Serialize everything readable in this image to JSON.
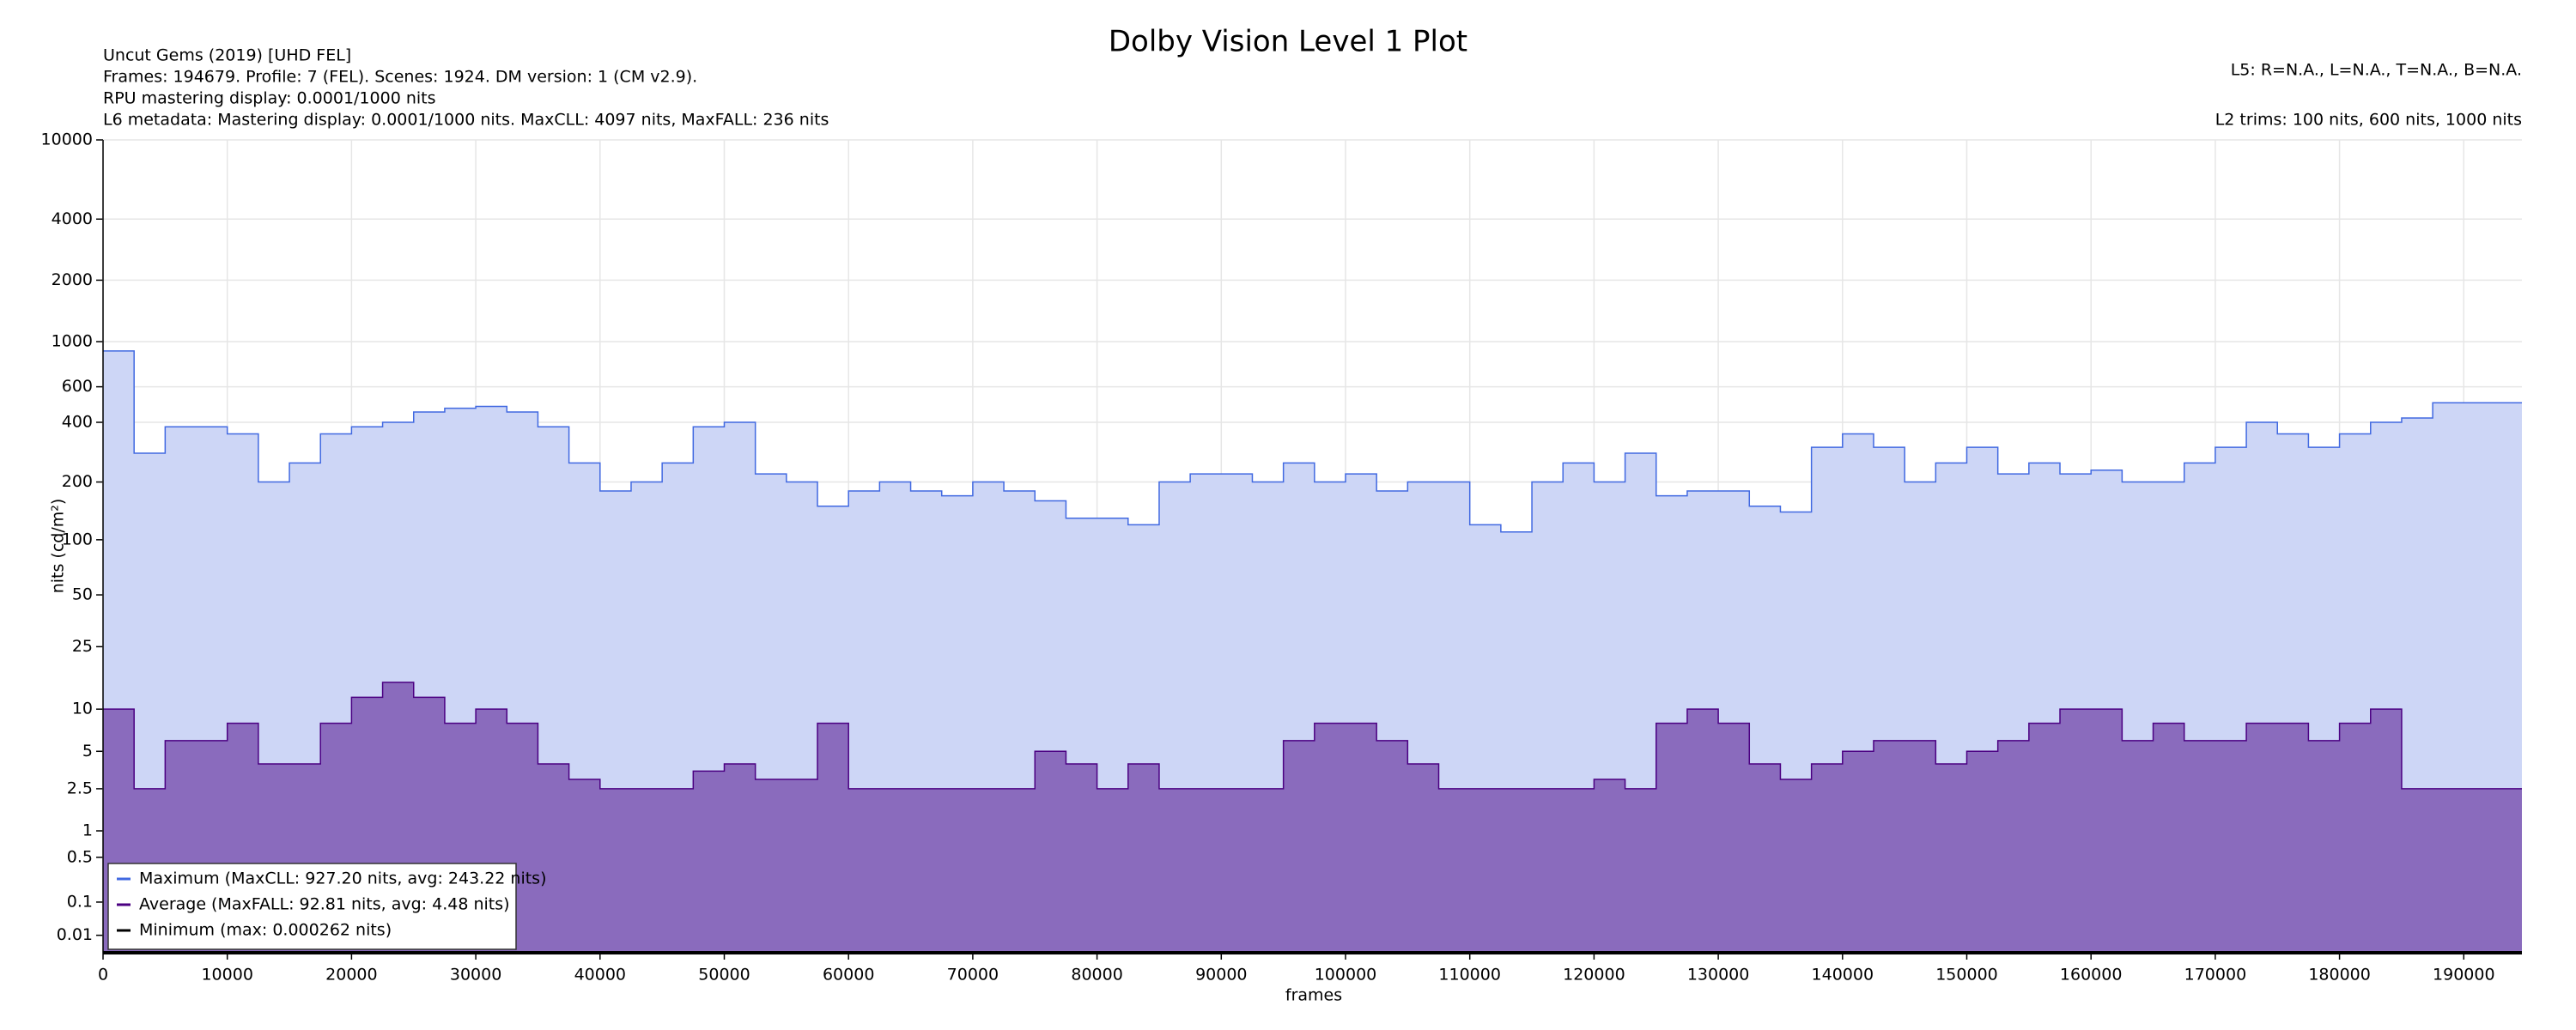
{
  "chart_data": {
    "type": "step",
    "title": "Dolby Vision Level 1 Plot",
    "info_left": [
      "Uncut Gems (2019) [UHD FEL]",
      "Frames: 194679. Profile: 7 (FEL). Scenes: 1924. DM version: 1 (CM v2.9).",
      "RPU mastering display: 0.0001/1000 nits",
      "L6 metadata: Mastering display: 0.0001/1000 nits. MaxCLL: 4097 nits, MaxFALL: 236 nits"
    ],
    "info_right": [
      "L5: R=N.A., L=N.A., T=N.A., B=N.A.",
      "L2 trims: 100 nits, 600 nits, 1000 nits"
    ],
    "xlabel": "frames",
    "ylabel": "nits (cd/m²)",
    "yscale": "pq",
    "grid": true,
    "legend": "lower left",
    "xlim": [
      0,
      194679
    ],
    "ylim": [
      0,
      10000
    ],
    "xticks": [
      0,
      10000,
      20000,
      30000,
      40000,
      50000,
      60000,
      70000,
      80000,
      90000,
      100000,
      110000,
      120000,
      130000,
      140000,
      150000,
      160000,
      170000,
      180000,
      190000
    ],
    "yticks": [
      0.01,
      0.1,
      0.5,
      1,
      2.5,
      5,
      10,
      25,
      50,
      100,
      200,
      400,
      600,
      1000,
      2000,
      4000,
      10000
    ],
    "x": [
      0,
      2500,
      5000,
      7500,
      10000,
      12500,
      15000,
      17500,
      20000,
      22500,
      25000,
      27500,
      30000,
      32500,
      35000,
      37500,
      40000,
      42500,
      45000,
      47500,
      50000,
      52500,
      55000,
      57500,
      60000,
      62500,
      65000,
      67500,
      70000,
      72500,
      75000,
      77500,
      80000,
      82500,
      85000,
      87500,
      90000,
      92500,
      95000,
      97500,
      100000,
      102500,
      105000,
      107500,
      110000,
      112500,
      115000,
      117500,
      120000,
      122500,
      125000,
      127500,
      130000,
      132500,
      135000,
      137500,
      140000,
      142500,
      145000,
      147500,
      150000,
      152500,
      155000,
      157500,
      160000,
      162500,
      165000,
      167500,
      170000,
      172500,
      175000,
      177500,
      180000,
      182500,
      185000,
      187500,
      190000,
      192500,
      194679
    ],
    "series": [
      {
        "name": "Maximum (MaxCLL: 927.20 nits, avg: 243.22 nits)",
        "color": "#4169e1",
        "fill": "#cdd6f6",
        "values": [
          900,
          280,
          380,
          380,
          350,
          200,
          250,
          350,
          380,
          400,
          450,
          470,
          480,
          450,
          380,
          250,
          180,
          200,
          250,
          380,
          400,
          220,
          200,
          150,
          180,
          200,
          180,
          170,
          200,
          180,
          160,
          130,
          130,
          120,
          200,
          220,
          220,
          200,
          250,
          200,
          220,
          180,
          200,
          200,
          120,
          110,
          200,
          250,
          200,
          280,
          170,
          180,
          180,
          150,
          140,
          300,
          350,
          300,
          200,
          250,
          300,
          220,
          250,
          220,
          230,
          200,
          200,
          250,
          300,
          400,
          350,
          300,
          350,
          400,
          420,
          500,
          500,
          500,
          500
        ]
      },
      {
        "name": "Average (MaxFALL: 92.81 nits, avg: 4.48 nits)",
        "color": "#4b0082",
        "fill": "#8a6bbd",
        "values": [
          10,
          2.5,
          6,
          6,
          8,
          4,
          4,
          8,
          12,
          15,
          12,
          8,
          10,
          8,
          4,
          3,
          2.5,
          2.5,
          2.5,
          3.5,
          4,
          3,
          3,
          8,
          2.5,
          2.5,
          2.5,
          2.5,
          2.5,
          2.5,
          5,
          4,
          2.5,
          4,
          2.5,
          2.5,
          2.5,
          2.5,
          6,
          8,
          8,
          6,
          4,
          2.5,
          2.5,
          2.5,
          2.5,
          2.5,
          3,
          2.5,
          8,
          10,
          8,
          4,
          3,
          4,
          5,
          6,
          6,
          4,
          5,
          6,
          8,
          10,
          10,
          6,
          8,
          6,
          6,
          8,
          8,
          6,
          8,
          10,
          2.5,
          2.5,
          2.5,
          2.5,
          2.5
        ]
      },
      {
        "name": "Minimum (max: 0.000262 nits)",
        "color": "#000000",
        "fill": "none",
        "values": [
          0,
          0,
          0,
          0,
          0,
          0,
          0,
          0,
          0,
          0,
          0,
          0,
          0,
          0,
          0,
          0,
          0,
          0,
          0,
          0,
          0,
          0,
          0,
          0,
          0,
          0,
          0,
          0,
          0,
          0,
          0,
          0,
          0,
          0,
          0,
          0,
          0,
          0,
          0,
          0,
          0,
          0,
          0,
          0,
          0,
          0,
          0,
          0,
          0,
          0,
          0,
          0,
          0,
          0,
          0,
          0,
          0,
          0,
          0,
          0,
          0,
          0,
          0,
          0,
          0,
          0,
          0,
          0,
          0,
          0,
          0,
          0,
          0,
          0,
          0,
          0,
          0,
          0,
          0
        ]
      }
    ]
  }
}
